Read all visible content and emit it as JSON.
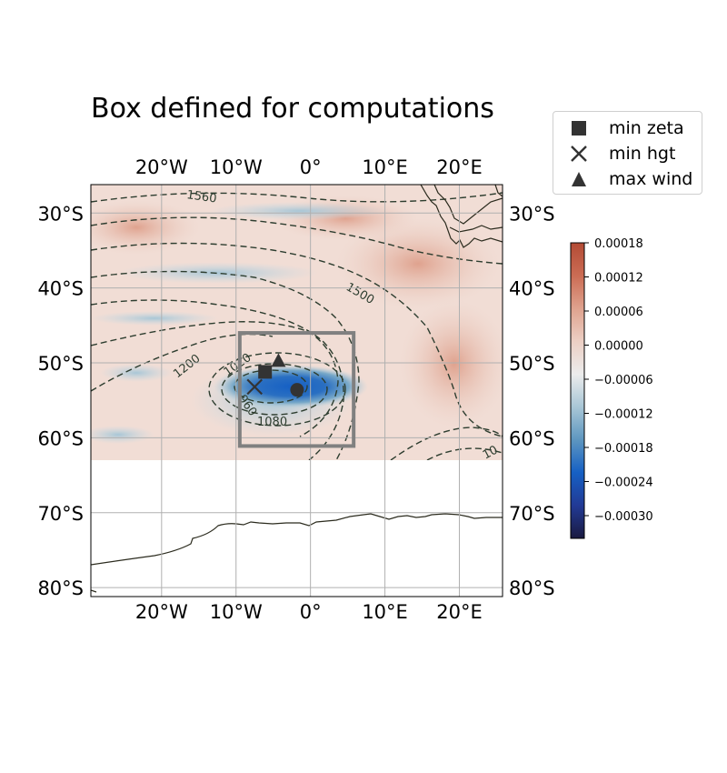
{
  "title": "Box defined for computations",
  "legend": {
    "items": [
      {
        "marker": "square",
        "label": "min zeta"
      },
      {
        "marker": "x",
        "label": "min hgt"
      },
      {
        "marker": "triangle",
        "label": "max wind"
      }
    ]
  },
  "map": {
    "lon_range": [
      -29.5,
      25.8
    ],
    "lat_range": [
      -81.2,
      -26.2
    ],
    "data_lat_bottom": -63,
    "lon_ticks": [
      -20,
      -10,
      0,
      10,
      20
    ],
    "lon_tick_labels": [
      "20°W",
      "10°W",
      "0°",
      "10°E",
      "20°E"
    ],
    "lat_ticks": [
      -30,
      -40,
      -50,
      -60,
      -70,
      -80
    ],
    "lat_tick_labels": [
      "30°S",
      "40°S",
      "50°S",
      "60°S",
      "70°S",
      "80°S"
    ],
    "gridlines": true,
    "computation_box": {
      "lon": [
        -9.5,
        5.8
      ],
      "lat": [
        -61.1,
        -46.0
      ]
    },
    "points": [
      {
        "name": "min zeta",
        "marker": "square",
        "lon": -6.1,
        "lat": -51.2
      },
      {
        "name": "min hgt",
        "marker": "x",
        "lon": -7.5,
        "lat": -53.2
      },
      {
        "name": "max wind",
        "marker": "triangle",
        "lon": -4.3,
        "lat": -49.8
      },
      {
        "name": "",
        "marker": "circle",
        "lon": -1.8,
        "lat": -53.6
      }
    ],
    "contour_labels": [
      "1560",
      "1500",
      "1200",
      "1020",
      "960",
      "1080",
      "10"
    ],
    "colorbar": {
      "min": -0.00034,
      "max": 0.00018,
      "ticks": [
        0.00018,
        0.00012,
        6e-05,
        0.0,
        -6e-05,
        -0.00012,
        -0.00018,
        -0.00024,
        -0.0003
      ],
      "tick_labels": [
        "0.00018",
        "0.00012",
        "0.00006",
        "0.00000",
        "−0.00006",
        "−0.00012",
        "−0.00018",
        "−0.00024",
        "−0.00030"
      ],
      "colors": [
        "#1a1a40",
        "#223a95",
        "#1660c4",
        "#5d96c0",
        "#a8c6d6",
        "#ececec",
        "#eccfc4",
        "#dfa28e",
        "#cb6c54",
        "#b34b35"
      ]
    }
  }
}
